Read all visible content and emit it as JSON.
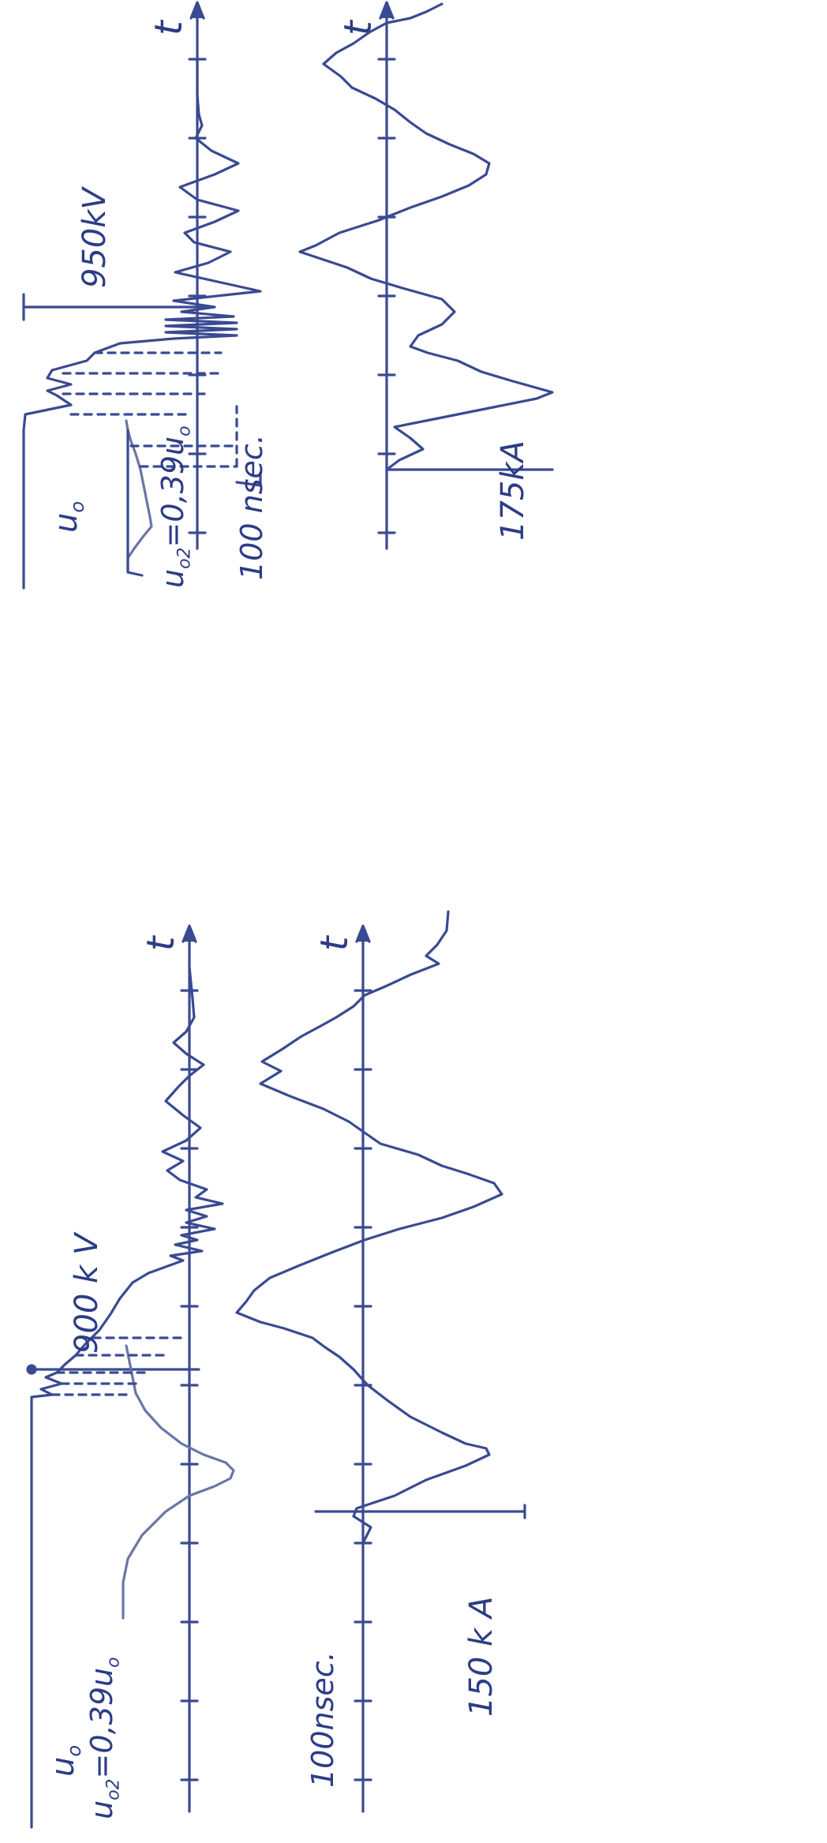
{
  "figure": {
    "ink_color": "#2c3c86",
    "axis_symbol": "t",
    "top_row_label": "u",
    "top_row_label_subscript": "o",
    "left": {
      "peak_voltage_label": "900 k V",
      "ratio_label": "u",
      "ratio_label_subscript": "o2",
      "ratio_value": "=0,39u",
      "ratio_value_subscript": "o",
      "time_scale_label": "100nsec.",
      "peak_current_label": "150 k A"
    },
    "right": {
      "peak_voltage_label": "950kV",
      "ratio_label": "u",
      "ratio_label_subscript": "o2",
      "ratio_value": "=0,39u",
      "ratio_value_subscript": "o",
      "time_scale_label": "100 nsec.",
      "peak_current_label": "175kA"
    }
  }
}
